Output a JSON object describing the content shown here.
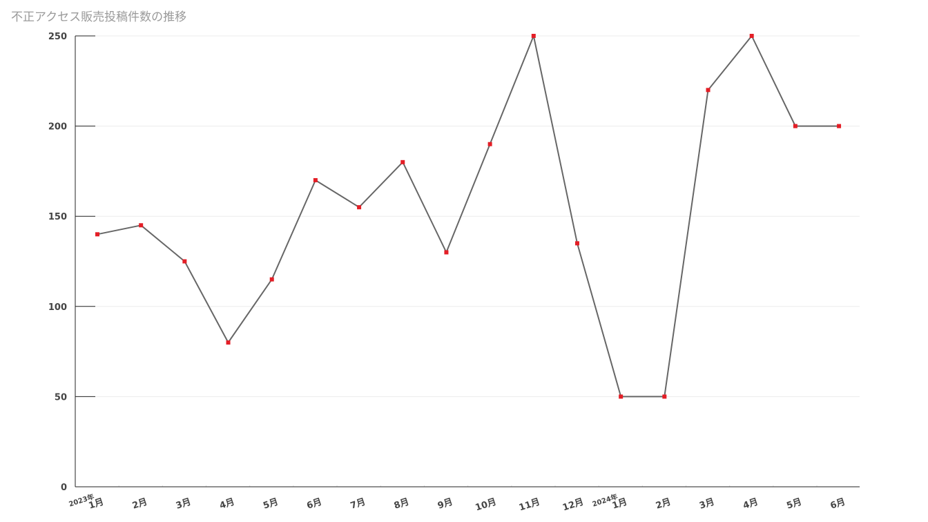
{
  "chart_data": {
    "type": "line",
    "title": "不正アクセス販売投稿件数の推移",
    "xlabel": "",
    "ylabel": "",
    "ylim": [
      0,
      250
    ],
    "yticks": [
      0,
      50,
      100,
      150,
      200,
      250
    ],
    "grid": true,
    "categories": [
      "1月",
      "2月",
      "3月",
      "4月",
      "5月",
      "6月",
      "7月",
      "8月",
      "9月",
      "10月",
      "11月",
      "12月",
      "1月",
      "2月",
      "3月",
      "4月",
      "5月",
      "6月"
    ],
    "year_labels": [
      {
        "index": 0,
        "label": "2023年"
      },
      {
        "index": 12,
        "label": "2024年"
      }
    ],
    "series": [
      {
        "values": [
          140,
          145,
          125,
          80,
          115,
          170,
          155,
          180,
          130,
          190,
          250,
          135,
          50,
          50,
          220,
          250,
          200,
          200
        ],
        "line_color": "#666666",
        "marker_color": "#e41e26"
      }
    ]
  }
}
